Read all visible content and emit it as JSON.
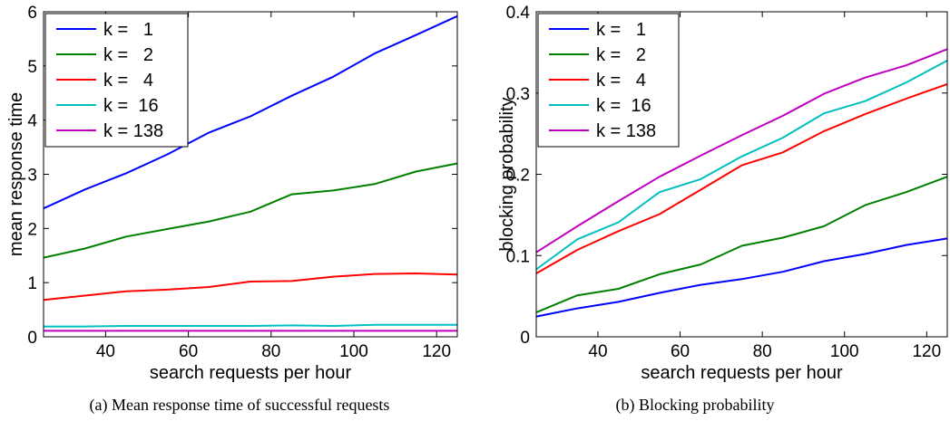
{
  "chart_data": [
    {
      "type": "line",
      "caption": "(a)  Mean response time of successful requests",
      "xlabel": "search requests per hour",
      "ylabel": "mean response time",
      "xlim": [
        25,
        125
      ],
      "ylim": [
        0,
        6
      ],
      "xticks": [
        40,
        60,
        80,
        100,
        120
      ],
      "yticks": [
        0,
        1,
        2,
        3,
        4,
        5,
        6
      ],
      "legend_position": "top-left",
      "x": [
        25,
        35,
        45,
        55,
        65,
        75,
        85,
        95,
        105,
        115,
        125
      ],
      "series": [
        {
          "name": "k =   1",
          "color": "#0000ff",
          "values": [
            2.37,
            2.72,
            3.02,
            3.37,
            3.77,
            4.07,
            4.45,
            4.8,
            5.23,
            5.57,
            5.92
          ]
        },
        {
          "name": "k =   2",
          "color": "#008000",
          "values": [
            1.46,
            1.63,
            1.85,
            1.99,
            2.13,
            2.31,
            2.63,
            2.7,
            2.82,
            3.05,
            3.2
          ]
        },
        {
          "name": "k =   4",
          "color": "#ff0000",
          "values": [
            0.68,
            0.76,
            0.84,
            0.87,
            0.92,
            1.02,
            1.03,
            1.11,
            1.16,
            1.17,
            1.15
          ]
        },
        {
          "name": "k =  16",
          "color": "#00bfbf",
          "values": [
            0.19,
            0.19,
            0.2,
            0.2,
            0.2,
            0.2,
            0.21,
            0.2,
            0.22,
            0.22,
            0.22
          ]
        },
        {
          "name": "k = 138",
          "color": "#bf00bf",
          "values": [
            0.11,
            0.11,
            0.11,
            0.11,
            0.11,
            0.11,
            0.11,
            0.11,
            0.11,
            0.11,
            0.11
          ]
        }
      ]
    },
    {
      "type": "line",
      "caption": "(b)  Blocking probability",
      "xlabel": "search requests per hour",
      "ylabel": "blocking probability",
      "xlim": [
        25,
        125
      ],
      "ylim": [
        0,
        0.4
      ],
      "xticks": [
        40,
        60,
        80,
        100,
        120
      ],
      "yticks": [
        0,
        0.1,
        0.2,
        0.3,
        0.4
      ],
      "ytick_labels": [
        "0",
        "0.1",
        "0.2",
        "0.3",
        "0.4"
      ],
      "legend_position": "top-left",
      "x": [
        25,
        35,
        45,
        55,
        65,
        75,
        85,
        95,
        105,
        115,
        125
      ],
      "series": [
        {
          "name": "k =   1",
          "color": "#0000ff",
          "values": [
            0.025,
            0.035,
            0.043,
            0.054,
            0.064,
            0.071,
            0.08,
            0.093,
            0.102,
            0.113,
            0.121
          ]
        },
        {
          "name": "k =   2",
          "color": "#008000",
          "values": [
            0.03,
            0.051,
            0.059,
            0.077,
            0.089,
            0.112,
            0.122,
            0.136,
            0.162,
            0.178,
            0.197
          ]
        },
        {
          "name": "k =   4",
          "color": "#ff0000",
          "values": [
            0.078,
            0.107,
            0.13,
            0.151,
            0.181,
            0.211,
            0.227,
            0.253,
            0.274,
            0.293,
            0.311
          ]
        },
        {
          "name": "k =  16",
          "color": "#00bfbf",
          "values": [
            0.083,
            0.12,
            0.141,
            0.178,
            0.194,
            0.222,
            0.245,
            0.275,
            0.29,
            0.313,
            0.34
          ]
        },
        {
          "name": "k = 138",
          "color": "#bf00bf",
          "values": [
            0.104,
            0.136,
            0.167,
            0.197,
            0.223,
            0.248,
            0.272,
            0.299,
            0.319,
            0.334,
            0.354
          ]
        }
      ]
    }
  ]
}
